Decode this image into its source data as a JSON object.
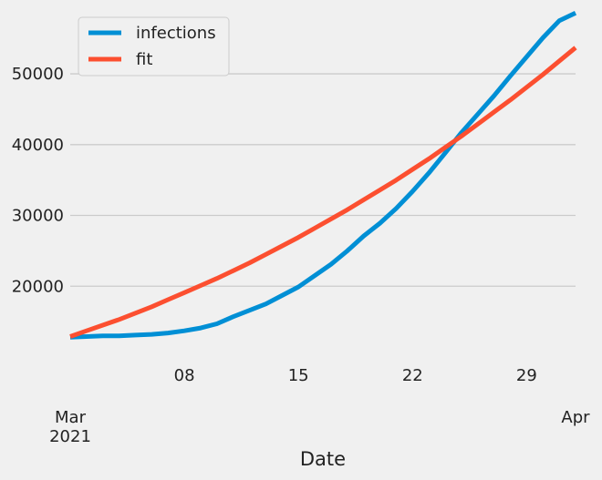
{
  "chart_data": {
    "type": "line",
    "title": "",
    "xlabel": "Date",
    "ylabel": "",
    "x": [
      "2021-03-01",
      "2021-03-02",
      "2021-03-03",
      "2021-03-04",
      "2021-03-05",
      "2021-03-06",
      "2021-03-07",
      "2021-03-08",
      "2021-03-09",
      "2021-03-10",
      "2021-03-11",
      "2021-03-12",
      "2021-03-13",
      "2021-03-14",
      "2021-03-15",
      "2021-03-16",
      "2021-03-17",
      "2021-03-18",
      "2021-03-19",
      "2021-03-20",
      "2021-03-21",
      "2021-03-22",
      "2021-03-23",
      "2021-03-24",
      "2021-03-25",
      "2021-03-26",
      "2021-03-27",
      "2021-03-28",
      "2021-03-29",
      "2021-03-30",
      "2021-03-31",
      "2021-04-01"
    ],
    "xlim": [
      "2021-03-01",
      "2021-04-01"
    ],
    "ylim": [
      10000,
      58500
    ],
    "series": [
      {
        "name": "infections",
        "color": "#008fd5",
        "values": [
          12800,
          12900,
          13000,
          13000,
          13100,
          13200,
          13400,
          13700,
          14100,
          14700,
          15700,
          16600,
          17500,
          18700,
          19900,
          21500,
          23100,
          25000,
          27100,
          28900,
          31000,
          33400,
          36000,
          38800,
          41700,
          44300,
          46900,
          49700,
          52400,
          55100,
          57500,
          58600
        ]
      },
      {
        "name": "fit",
        "color": "#fc4f30",
        "values": [
          12900,
          13700,
          14500,
          15300,
          16200,
          17100,
          18100,
          19100,
          20100,
          21100,
          22200,
          23300,
          24500,
          25700,
          26900,
          28200,
          29500,
          30800,
          32200,
          33600,
          35000,
          36500,
          38000,
          39600,
          41200,
          42900,
          44600,
          46300,
          48100,
          49900,
          51800,
          53700
        ]
      }
    ],
    "x_ticks": [
      {
        "date": "2021-03-01",
        "label": "Mar",
        "sublabel": "2021"
      },
      {
        "date": "2021-03-08",
        "label": "08",
        "sublabel": ""
      },
      {
        "date": "2021-03-15",
        "label": "15",
        "sublabel": ""
      },
      {
        "date": "2021-03-22",
        "label": "22",
        "sublabel": ""
      },
      {
        "date": "2021-03-29",
        "label": "29",
        "sublabel": ""
      },
      {
        "date": "2021-04-01",
        "label": "Apr",
        "sublabel": ""
      }
    ],
    "y_ticks": [
      20000,
      30000,
      40000,
      50000
    ],
    "grid": true,
    "legend_position": "top-left",
    "background_color": "#f0f0f0",
    "grid_color": "#cbcbcb"
  }
}
